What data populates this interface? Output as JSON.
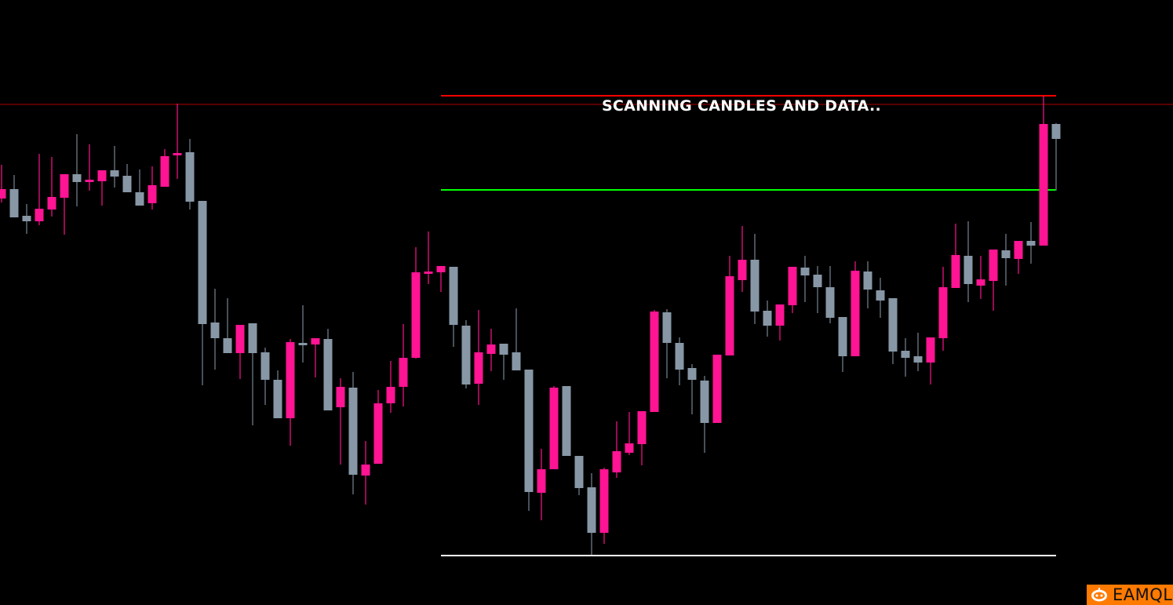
{
  "overlay_text": "SCANNING CANDLES AND DATA..",
  "logo": {
    "text": "EAMQL",
    "color": "#ff7a00"
  },
  "chart_data": {
    "type": "candlestick",
    "title": "",
    "xlabel": "",
    "ylabel": "",
    "axes_visible": false,
    "grid": false,
    "price_units": "unitless (no axis printed)",
    "ylim": [
      0,
      800
    ],
    "colors": {
      "bullish": "#ff1493",
      "bearish": "#8797a6",
      "background": "#000000"
    },
    "levels": [
      {
        "role": "full-width resistance",
        "price": 667,
        "color": "#b00000",
        "span": "full"
      },
      {
        "role": "range high",
        "price": 678,
        "color": "#ff0000",
        "span": "range"
      },
      {
        "role": "range midline",
        "price": 558,
        "color": "#00ff00",
        "span": "range"
      },
      {
        "role": "range low",
        "price": 92,
        "color": "#ffffff",
        "span": "range"
      }
    ],
    "range_start_index": 35,
    "candles_ohlc": [
      [
        547,
        590,
        542,
        559
      ],
      [
        559,
        577,
        523,
        523
      ],
      [
        525,
        540,
        502,
        518
      ],
      [
        518,
        604,
        513,
        534
      ],
      [
        533,
        600,
        524,
        549
      ],
      [
        548,
        578,
        501,
        578
      ],
      [
        578,
        629,
        537,
        568
      ],
      [
        569,
        616,
        557,
        571
      ],
      [
        569,
        583,
        538,
        583
      ],
      [
        583,
        614,
        561,
        575
      ],
      [
        576,
        591,
        555,
        555
      ],
      [
        555,
        584,
        538,
        538
      ],
      [
        541,
        588,
        533,
        564
      ],
      [
        562,
        610,
        562,
        601
      ],
      [
        603,
        668,
        572,
        605
      ],
      [
        606,
        623,
        533,
        543
      ],
      [
        544,
        544,
        309,
        387
      ],
      [
        389,
        432,
        329,
        369
      ],
      [
        369,
        420,
        350,
        350
      ],
      [
        350,
        386,
        317,
        386
      ],
      [
        388,
        388,
        258,
        350
      ],
      [
        351,
        357,
        284,
        316
      ],
      [
        316,
        328,
        267,
        267
      ],
      [
        267,
        368,
        232,
        364
      ],
      [
        363,
        411,
        338,
        361
      ],
      [
        361,
        369,
        319,
        369
      ],
      [
        368,
        381,
        277,
        277
      ],
      [
        281,
        318,
        208,
        307
      ],
      [
        306,
        326,
        170,
        195
      ],
      [
        194,
        238,
        157,
        208
      ],
      [
        209,
        303,
        209,
        286
      ],
      [
        286,
        340,
        274,
        307
      ],
      [
        307,
        387,
        282,
        344
      ],
      [
        344,
        485,
        343,
        453
      ],
      [
        452,
        505,
        438,
        454
      ],
      [
        453,
        461,
        428,
        461
      ],
      [
        460,
        460,
        358,
        386
      ],
      [
        385,
        392,
        305,
        310
      ],
      [
        311,
        405,
        284,
        351
      ],
      [
        349,
        381,
        327,
        361
      ],
      [
        362,
        362,
        316,
        348
      ],
      [
        351,
        407,
        328,
        328
      ],
      [
        329,
        329,
        149,
        173
      ],
      [
        172,
        228,
        137,
        202
      ],
      [
        202,
        308,
        202,
        306
      ],
      [
        308,
        308,
        219,
        219
      ],
      [
        219,
        219,
        169,
        178
      ],
      [
        179,
        197,
        93,
        121
      ],
      [
        121,
        204,
        107,
        202
      ],
      [
        198,
        263,
        191,
        225
      ],
      [
        223,
        275,
        220,
        235
      ],
      [
        234,
        276,
        207,
        276
      ],
      [
        275,
        405,
        275,
        403
      ],
      [
        402,
        406,
        318,
        363
      ],
      [
        363,
        370,
        309,
        329
      ],
      [
        331,
        336,
        272,
        316
      ],
      [
        315,
        321,
        223,
        261
      ],
      [
        261,
        348,
        261,
        348
      ],
      [
        347,
        474,
        347,
        448
      ],
      [
        443,
        512,
        428,
        469
      ],
      [
        469,
        502,
        387,
        403
      ],
      [
        404,
        417,
        371,
        385
      ],
      [
        385,
        412,
        366,
        412
      ],
      [
        411,
        460,
        401,
        460
      ],
      [
        459,
        474,
        415,
        449
      ],
      [
        450,
        461,
        401,
        434
      ],
      [
        434,
        461,
        388,
        395
      ],
      [
        396,
        396,
        326,
        346
      ],
      [
        346,
        467,
        346,
        455
      ],
      [
        454,
        467,
        407,
        431
      ],
      [
        430,
        446,
        395,
        417
      ],
      [
        420,
        420,
        336,
        352
      ],
      [
        353,
        369,
        320,
        344
      ],
      [
        346,
        376,
        327,
        338
      ],
      [
        338,
        370,
        310,
        370
      ],
      [
        369,
        460,
        353,
        434
      ],
      [
        433,
        515,
        433,
        475
      ],
      [
        474,
        518,
        415,
        438
      ],
      [
        436,
        474,
        419,
        444
      ],
      [
        442,
        482,
        404,
        482
      ],
      [
        481,
        502,
        436,
        471
      ],
      [
        470,
        493,
        451,
        493
      ],
      [
        493,
        517,
        464,
        487
      ],
      [
        487,
        677,
        487,
        642
      ],
      [
        642,
        643,
        557,
        623
      ]
    ]
  }
}
